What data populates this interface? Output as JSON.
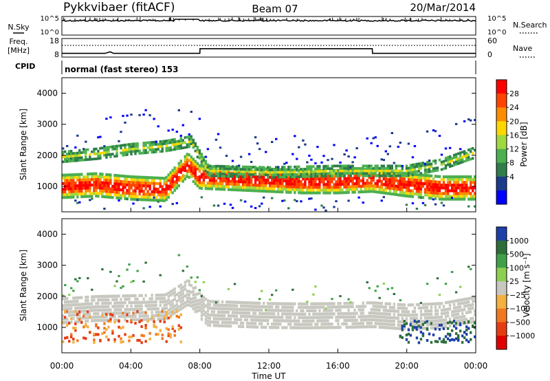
{
  "header": {
    "station": "Pykkvibaer (fitACF)",
    "beam": "Beam 07",
    "date": "20/Mar/2014"
  },
  "noise_panel": {
    "left_label": "N.Sky",
    "right_label": "N.Search",
    "ticks_left": [
      "10^5",
      "10^0"
    ],
    "ticks_right": [
      "10^5",
      "10^0"
    ]
  },
  "freq_panel": {
    "left_label_line1": "Freq.",
    "left_label_line2": "[MHz]",
    "right_label": "Nave",
    "ticks_left": [
      "18",
      "8"
    ],
    "ticks_right": [
      "60",
      "0"
    ]
  },
  "cpid_panel": {
    "label": "CPID",
    "text": "normal (fast stereo) 153"
  },
  "power_panel": {
    "ylabel": "Slant Range [km]",
    "cbar_label": "Power [dB]",
    "cbar_ticks": [
      "28",
      "24",
      "20",
      "16",
      "12",
      "8",
      "4"
    ],
    "cbar_colors": [
      "#ff0000",
      "#ff4400",
      "#ff8c00",
      "#ffd700",
      "#a0d840",
      "#4cb050",
      "#2e7d4a",
      "#1a3a8c",
      "#0000ff"
    ]
  },
  "velocity_panel": {
    "ylabel": "Slant Range [km]",
    "cbar_label": "Velocity  [m s⁻¹]",
    "cbar_ticks": [
      "1000",
      "500",
      "100",
      "25",
      "−25",
      "−100",
      "−500",
      "−1000"
    ],
    "cbar_colors": [
      "#1c3fa8",
      "#2e6e3a",
      "#3fa048",
      "#8cd050",
      "#c8c8c0",
      "#f4b040",
      "#f07820",
      "#e63c14",
      "#e00000"
    ]
  },
  "xaxis": {
    "label": "Time UT",
    "ticks": [
      "00:00",
      "04:00",
      "08:00",
      "12:00",
      "16:00",
      "20:00",
      "00:00"
    ]
  },
  "chart_data": [
    {
      "type": "heatmap",
      "title": "Power [dB]",
      "xlabel": "Time UT",
      "ylabel": "Slant Range [km]",
      "xlim": [
        0,
        24
      ],
      "ylim": [
        180,
        4500
      ],
      "yticks": [
        1000,
        2000,
        3000,
        4000
      ],
      "bands": [
        {
          "name": "main echo band",
          "t": [
            0,
            2,
            4,
            6,
            7.3,
            8,
            10,
            12,
            14,
            16,
            18,
            20,
            22,
            24
          ],
          "km": [
            1000,
            1050,
            950,
            900,
            1700,
            1300,
            1250,
            1200,
            1150,
            1150,
            1200,
            1050,
            950,
            950
          ],
          "value_db": 26
        },
        {
          "name": "upper echo band",
          "t": [
            0,
            2,
            4,
            6,
            7.5,
            8.5,
            12,
            16,
            20,
            22,
            24
          ],
          "km": [
            1950,
            2050,
            2200,
            2300,
            2450,
            1500,
            1450,
            1500,
            1500,
            1700,
            2100
          ],
          "value_db": 12
        }
      ]
    },
    {
      "type": "heatmap",
      "title": "Velocity [m s-1]",
      "xlabel": "Time UT",
      "ylabel": "Slant Range [km]",
      "xlim": [
        0,
        24
      ],
      "ylim": [
        180,
        4500
      ],
      "yticks": [
        1000,
        2000,
        3000,
        4000
      ],
      "regions": [
        {
          "name": "negative velocity patch",
          "t": [
            0,
            7
          ],
          "km": [
            600,
            1600
          ],
          "velocity": -300
        },
        {
          "name": "ground scatter band",
          "t": [
            0,
            24
          ],
          "km": [
            1000,
            2400
          ],
          "velocity": 0
        },
        {
          "name": "positive velocity patch",
          "t": [
            19.5,
            24
          ],
          "km": [
            600,
            1200
          ],
          "velocity": 800
        }
      ]
    },
    {
      "type": "line",
      "title": "Frequency",
      "xlim": [
        0,
        24
      ],
      "ylim": [
        8,
        18
      ],
      "x": [
        0,
        2.5,
        2.8,
        3,
        8,
        8.01,
        18,
        18.01,
        24
      ],
      "y": [
        10,
        10,
        10.8,
        10,
        10,
        12.5,
        12.5,
        10,
        10
      ]
    }
  ]
}
